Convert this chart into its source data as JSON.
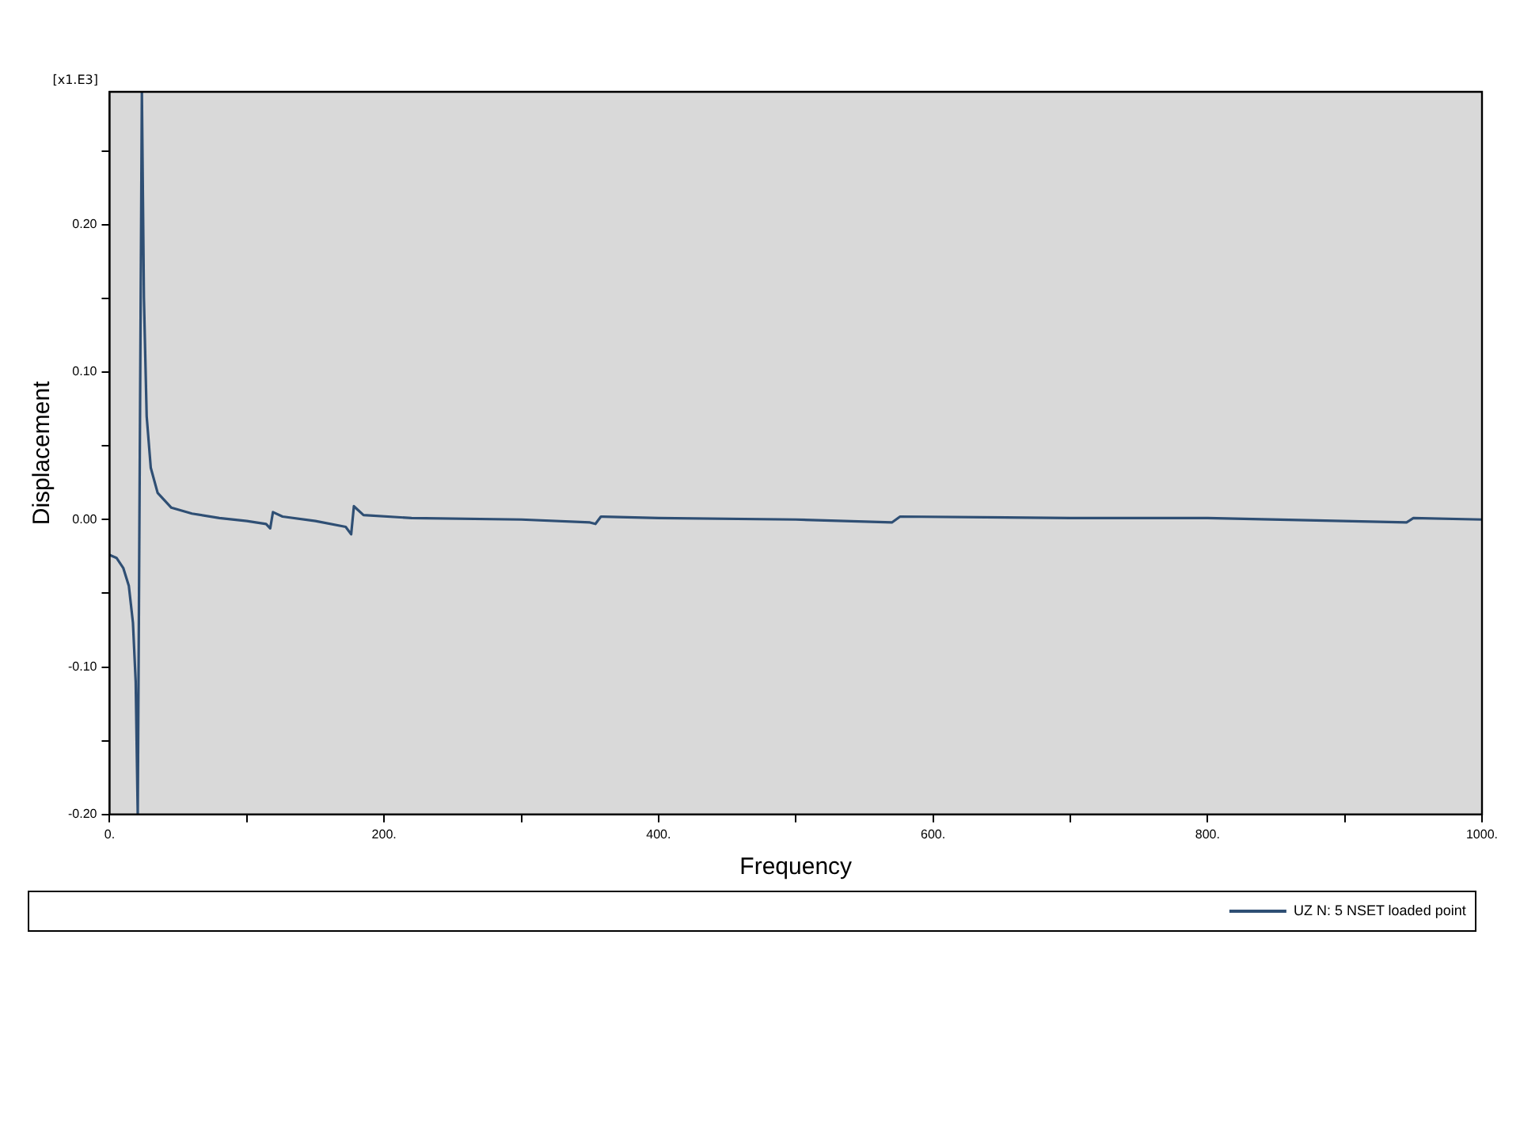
{
  "chart_data": {
    "type": "line",
    "xlabel": "Frequency",
    "ylabel": "Displacement",
    "annotations": [
      "[x1.E3]"
    ],
    "xlim": [
      0,
      1000
    ],
    "ylim": [
      -0.2,
      0.29
    ],
    "xticks": [
      {
        "value": 0,
        "label": "0."
      },
      {
        "value": 100,
        "label": null
      },
      {
        "value": 200,
        "label": "200."
      },
      {
        "value": 300,
        "label": null
      },
      {
        "value": 400,
        "label": "400."
      },
      {
        "value": 500,
        "label": null
      },
      {
        "value": 600,
        "label": "600."
      },
      {
        "value": 700,
        "label": null
      },
      {
        "value": 800,
        "label": "800."
      },
      {
        "value": 900,
        "label": null
      },
      {
        "value": 1000,
        "label": "1000."
      }
    ],
    "yticks": [
      {
        "value": -0.2,
        "label": "-0.20"
      },
      {
        "value": -0.15,
        "label": null
      },
      {
        "value": -0.1,
        "label": "-0.10"
      },
      {
        "value": -0.05,
        "label": null
      },
      {
        "value": 0,
        "label": "0.00"
      },
      {
        "value": 0.05,
        "label": null
      },
      {
        "value": 0.1,
        "label": "0.10"
      },
      {
        "value": 0.15,
        "label": null
      },
      {
        "value": 0.2,
        "label": "0.20"
      },
      {
        "value": 0.25,
        "label": null
      }
    ],
    "grid": false,
    "legend": "bottom right",
    "marker": "none",
    "line_style": "solid",
    "series": [
      {
        "name": "UZ N: 5 NSET loaded point",
        "color": "#2f4f74",
        "x": [
          0,
          5,
          10,
          14,
          17,
          19,
          20.5,
          23.5,
          25,
          27,
          30,
          35,
          45,
          60,
          80,
          100,
          114,
          117,
          119,
          126,
          150,
          172,
          176,
          178,
          185,
          220,
          300,
          350,
          354,
          358,
          400,
          500,
          570,
          576,
          700,
          800,
          945,
          950,
          1000
        ],
        "values": [
          -0.024,
          -0.026,
          -0.033,
          -0.045,
          -0.07,
          -0.11,
          -0.2,
          0.29,
          0.15,
          0.07,
          0.035,
          0.018,
          0.008,
          0.004,
          0.001,
          -0.001,
          -0.003,
          -0.006,
          0.005,
          0.002,
          -0.001,
          -0.005,
          -0.01,
          0.009,
          0.003,
          0.001,
          0,
          -0.002,
          -0.003,
          0.002,
          0.001,
          0,
          -0.002,
          0.002,
          0.001,
          0.001,
          -0.002,
          0.001,
          0
        ]
      }
    ]
  }
}
